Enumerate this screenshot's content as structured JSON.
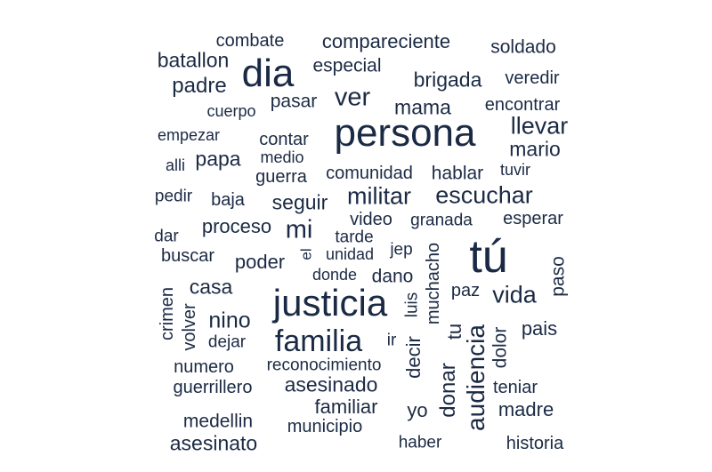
{
  "text_color": "#1b2a44",
  "words": [
    {
      "text": "combate"
    },
    {
      "text": "compareciente"
    },
    {
      "text": "soldado"
    },
    {
      "text": "batallon"
    },
    {
      "text": "dia"
    },
    {
      "text": "especial"
    },
    {
      "text": "padre"
    },
    {
      "text": "brigada"
    },
    {
      "text": "veredir"
    },
    {
      "text": "pasar"
    },
    {
      "text": "ver"
    },
    {
      "text": "mama"
    },
    {
      "text": "encontrar"
    },
    {
      "text": "cuerpo"
    },
    {
      "text": "persona"
    },
    {
      "text": "llevar"
    },
    {
      "text": "empezar"
    },
    {
      "text": "contar"
    },
    {
      "text": "mario"
    },
    {
      "text": "alli"
    },
    {
      "text": "papa"
    },
    {
      "text": "medio"
    },
    {
      "text": "guerra"
    },
    {
      "text": "comunidad"
    },
    {
      "text": "hablar"
    },
    {
      "text": "tuvir"
    },
    {
      "text": "pedir"
    },
    {
      "text": "baja"
    },
    {
      "text": "seguir"
    },
    {
      "text": "militar"
    },
    {
      "text": "escuchar"
    },
    {
      "text": "proceso"
    },
    {
      "text": "video"
    },
    {
      "text": "granada"
    },
    {
      "text": "esperar"
    },
    {
      "text": "dar"
    },
    {
      "text": "mi"
    },
    {
      "text": "tarde"
    },
    {
      "text": "tú"
    },
    {
      "text": "buscar"
    },
    {
      "text": "el"
    },
    {
      "text": "unidad"
    },
    {
      "text": "jep"
    },
    {
      "text": "poder"
    },
    {
      "text": "muchacho"
    },
    {
      "text": "paso"
    },
    {
      "text": "donde"
    },
    {
      "text": "dano"
    },
    {
      "text": "casa"
    },
    {
      "text": "crimen"
    },
    {
      "text": "justicia"
    },
    {
      "text": "luis"
    },
    {
      "text": "paz"
    },
    {
      "text": "vida"
    },
    {
      "text": "volver"
    },
    {
      "text": "nino"
    },
    {
      "text": "tu"
    },
    {
      "text": "pais"
    },
    {
      "text": "familia"
    },
    {
      "text": "dejar"
    },
    {
      "text": "ir"
    },
    {
      "text": "decir"
    },
    {
      "text": "audiencia"
    },
    {
      "text": "dolor"
    },
    {
      "text": "numero"
    },
    {
      "text": "reconocimiento"
    },
    {
      "text": "guerrillero"
    },
    {
      "text": "asesinado"
    },
    {
      "text": "donar"
    },
    {
      "text": "teniar"
    },
    {
      "text": "familiar"
    },
    {
      "text": "yo"
    },
    {
      "text": "madre"
    },
    {
      "text": "medellin"
    },
    {
      "text": "municipio"
    },
    {
      "text": "asesinato"
    },
    {
      "text": "haber"
    },
    {
      "text": "historia"
    }
  ]
}
